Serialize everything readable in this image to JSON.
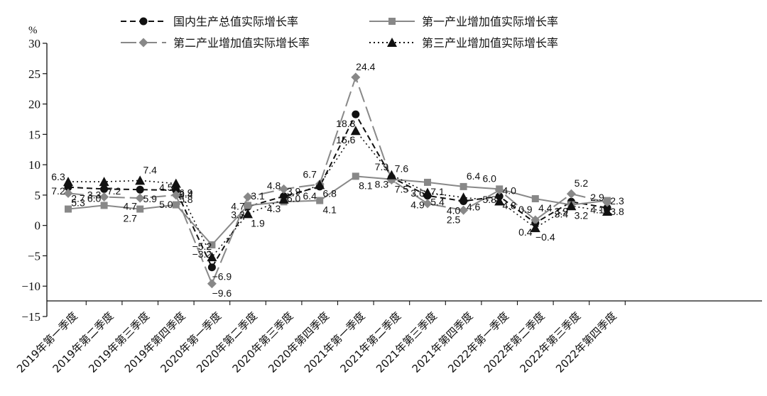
{
  "chart_data": {
    "type": "line",
    "unit": "%",
    "ylim": [
      -15,
      30
    ],
    "yticks": [
      -15,
      -10,
      -5,
      0,
      5,
      10,
      15,
      20,
      25,
      30
    ],
    "categories": [
      "2019年第一季度",
      "2019年第二季度",
      "2019年第三季度",
      "2019年第四季度",
      "2020年第一季度",
      "2020年第二季度",
      "2020年第三季度",
      "2020年第四季度",
      "2021年第一季度",
      "2021年第二季度",
      "2021年第三季度",
      "2021年第四季度",
      "2022年第一季度",
      "2022年第二季度",
      "2022年第三季度",
      "2022年第四季度"
    ],
    "series": [
      {
        "name": "国内生产总值实际增长率",
        "color": "#111111",
        "dash": "8,5",
        "marker": "circle",
        "values": [
          6.3,
          6.0,
          5.9,
          5.8,
          -6.9,
          3.1,
          4.8,
          6.4,
          18.3,
          7.9,
          4.9,
          4.0,
          4.8,
          0.4,
          3.9,
          2.9
        ]
      },
      {
        "name": "第一产业增加值实际增长率",
        "color": "#888888",
        "dash": "",
        "marker": "square",
        "values": [
          2.7,
          3.3,
          2.7,
          3.4,
          -3.2,
          3.3,
          3.9,
          4.1,
          8.1,
          7.6,
          7.1,
          6.4,
          6.0,
          4.4,
          3.4,
          4.1
        ]
      },
      {
        "name": "第二产业增加值实际增长率",
        "color": "#888888",
        "dash": "22,7",
        "marker": "diamond",
        "values": [
          5.3,
          4.7,
          4.5,
          5.0,
          -9.6,
          4.7,
          6.0,
          6.8,
          24.4,
          7.5,
          3.6,
          2.5,
          5.8,
          0.9,
          5.2,
          3.8
        ]
      },
      {
        "name": "第三产业增加值实际增长率",
        "color": "#111111",
        "dash": "2,4",
        "marker": "triangle",
        "values": [
          7.2,
          7.2,
          7.4,
          6.9,
          -5.2,
          1.9,
          4.3,
          6.7,
          15.6,
          8.3,
          5.4,
          4.6,
          4.0,
          -0.4,
          3.2,
          2.3
        ]
      }
    ],
    "data_labels": [
      {
        "text": "6.3",
        "x": 0,
        "y": 6.3
      },
      {
        "text": "5.3",
        "x": 0,
        "y": 5.3
      },
      {
        "text": "7.2",
        "x": 0,
        "y": 7.2
      },
      {
        "text": "2.7",
        "x": 0,
        "y": 2.7
      },
      {
        "text": "6.0",
        "x": 1,
        "y": 6.0
      },
      {
        "text": "7.2",
        "x": 1,
        "y": 7.2
      },
      {
        "text": "3.3",
        "x": 1,
        "y": 3.3
      },
      {
        "text": "5.9",
        "x": 2,
        "y": 5.9
      },
      {
        "text": "4.7",
        "x": 2,
        "y": 4.7
      },
      {
        "text": "7.4",
        "x": 2,
        "y": 7.4
      },
      {
        "text": "2.7",
        "x": 2,
        "y": 2.7
      },
      {
        "text": "5.8",
        "x": 3,
        "y": 5.8
      },
      {
        "text": "4.5",
        "x": 3,
        "y": 4.5
      },
      {
        "text": "6.9",
        "x": 3,
        "y": 6.9
      },
      {
        "text": "5.0",
        "x": 3,
        "y": 5.0
      },
      {
        "text": "3.4",
        "x": 3,
        "y": 3.4
      },
      {
        "text": "−3.2",
        "x": 4,
        "y": -3.2
      },
      {
        "text": "−6.9",
        "x": 4,
        "y": -6.9
      },
      {
        "text": "−5.2",
        "x": 4,
        "y": -5.2
      },
      {
        "text": "−9.6",
        "x": 4,
        "y": -9.6
      },
      {
        "text": "3.3",
        "x": 5,
        "y": 3.3
      },
      {
        "text": "3.1",
        "x": 5,
        "y": 3.1
      },
      {
        "text": "4.7",
        "x": 5,
        "y": 4.7
      },
      {
        "text": "1.9",
        "x": 5,
        "y": 1.9
      },
      {
        "text": "4.8",
        "x": 6,
        "y": 4.8
      },
      {
        "text": "6.0",
        "x": 6,
        "y": 6.0
      },
      {
        "text": "4.3",
        "x": 6,
        "y": 4.3
      },
      {
        "text": "3.9",
        "x": 6,
        "y": 3.9
      },
      {
        "text": "6.4",
        "x": 7,
        "y": 6.4
      },
      {
        "text": "6.8",
        "x": 7,
        "y": 6.8
      },
      {
        "text": "6.7",
        "x": 7,
        "y": 6.7
      },
      {
        "text": "4.1",
        "x": 7,
        "y": 4.1
      },
      {
        "text": "18.3",
        "x": 8,
        "y": 18.3
      },
      {
        "text": "24.4",
        "x": 8,
        "y": 24.4
      },
      {
        "text": "15.6",
        "x": 8,
        "y": 15.6
      },
      {
        "text": "8.1",
        "x": 8,
        "y": 8.1
      },
      {
        "text": "7.9",
        "x": 9,
        "y": 7.9
      },
      {
        "text": "7.5",
        "x": 9,
        "y": 7.5
      },
      {
        "text": "8.3",
        "x": 9,
        "y": 8.3
      },
      {
        "text": "7.6",
        "x": 9,
        "y": 7.6
      },
      {
        "text": "4.9",
        "x": 10,
        "y": 4.9
      },
      {
        "text": "7.1",
        "x": 10,
        "y": 7.1
      },
      {
        "text": "3.6",
        "x": 10,
        "y": 3.6
      },
      {
        "text": "5.4",
        "x": 10,
        "y": 5.4
      },
      {
        "text": "4.0",
        "x": 11,
        "y": 4.0
      },
      {
        "text": "6.4",
        "x": 11,
        "y": 6.4
      },
      {
        "text": "2.5",
        "x": 11,
        "y": 2.5
      },
      {
        "text": "4.6",
        "x": 11,
        "y": 4.6
      },
      {
        "text": "6.0",
        "x": 12,
        "y": 6.0
      },
      {
        "text": "4.8",
        "x": 12,
        "y": 4.8
      },
      {
        "text": "5.8",
        "x": 12,
        "y": 5.8
      },
      {
        "text": "4.0",
        "x": 12,
        "y": 4.0
      },
      {
        "text": "0.4",
        "x": 13,
        "y": 0.4
      },
      {
        "text": "4.4",
        "x": 13,
        "y": 4.4
      },
      {
        "text": "0.9",
        "x": 13,
        "y": 0.9
      },
      {
        "text": "−0.4",
        "x": 13,
        "y": -0.4
      },
      {
        "text": "3.9",
        "x": 14,
        "y": 3.9
      },
      {
        "text": "5.2",
        "x": 14,
        "y": 5.2
      },
      {
        "text": "3.4",
        "x": 14,
        "y": 3.4
      },
      {
        "text": "3.2",
        "x": 14,
        "y": 3.2
      },
      {
        "text": "2.9",
        "x": 15,
        "y": 2.9
      },
      {
        "text": "3.8",
        "x": 15,
        "y": 3.8
      },
      {
        "text": "4.1",
        "x": 15,
        "y": 4.1
      },
      {
        "text": "2.3",
        "x": 15,
        "y": 2.3
      }
    ]
  }
}
